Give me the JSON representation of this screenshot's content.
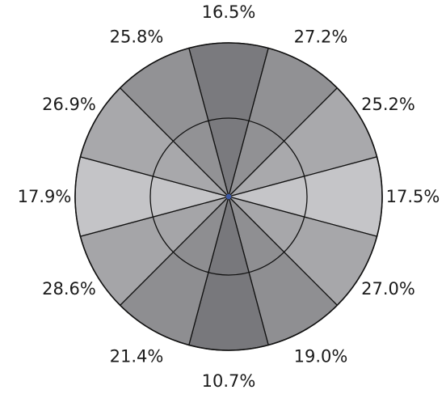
{
  "chart_data": {
    "type": "pie",
    "subtype": "polar-sector",
    "grid": true,
    "sectors": [
      {
        "label": "16.5%",
        "value": 16.5,
        "color": "#7a7a7e"
      },
      {
        "label": "27.2%",
        "value": 27.2,
        "color": "#919194"
      },
      {
        "label": "25.2%",
        "value": 25.2,
        "color": "#a9a9ac"
      },
      {
        "label": "17.5%",
        "value": 17.5,
        "color": "#c5c5c8"
      },
      {
        "label": "27.0%",
        "value": 27.0,
        "color": "#a7a7aa"
      },
      {
        "label": "19.0%",
        "value": 19.0,
        "color": "#8f8f92"
      },
      {
        "label": "10.7%",
        "value": 10.7,
        "color": "#78787c"
      },
      {
        "label": "21.4%",
        "value": 21.4,
        "color": "#8e8e91"
      },
      {
        "label": "28.6%",
        "value": 28.6,
        "color": "#a5a5a8"
      },
      {
        "label": "17.9%",
        "value": 17.9,
        "color": "#c4c4c7"
      },
      {
        "label": "26.9%",
        "value": 26.9,
        "color": "#a8a8ab"
      },
      {
        "label": "25.8%",
        "value": 25.8,
        "color": "#929295"
      }
    ],
    "center_dot_color": "#3d5aa8",
    "line_color": "#111111"
  }
}
